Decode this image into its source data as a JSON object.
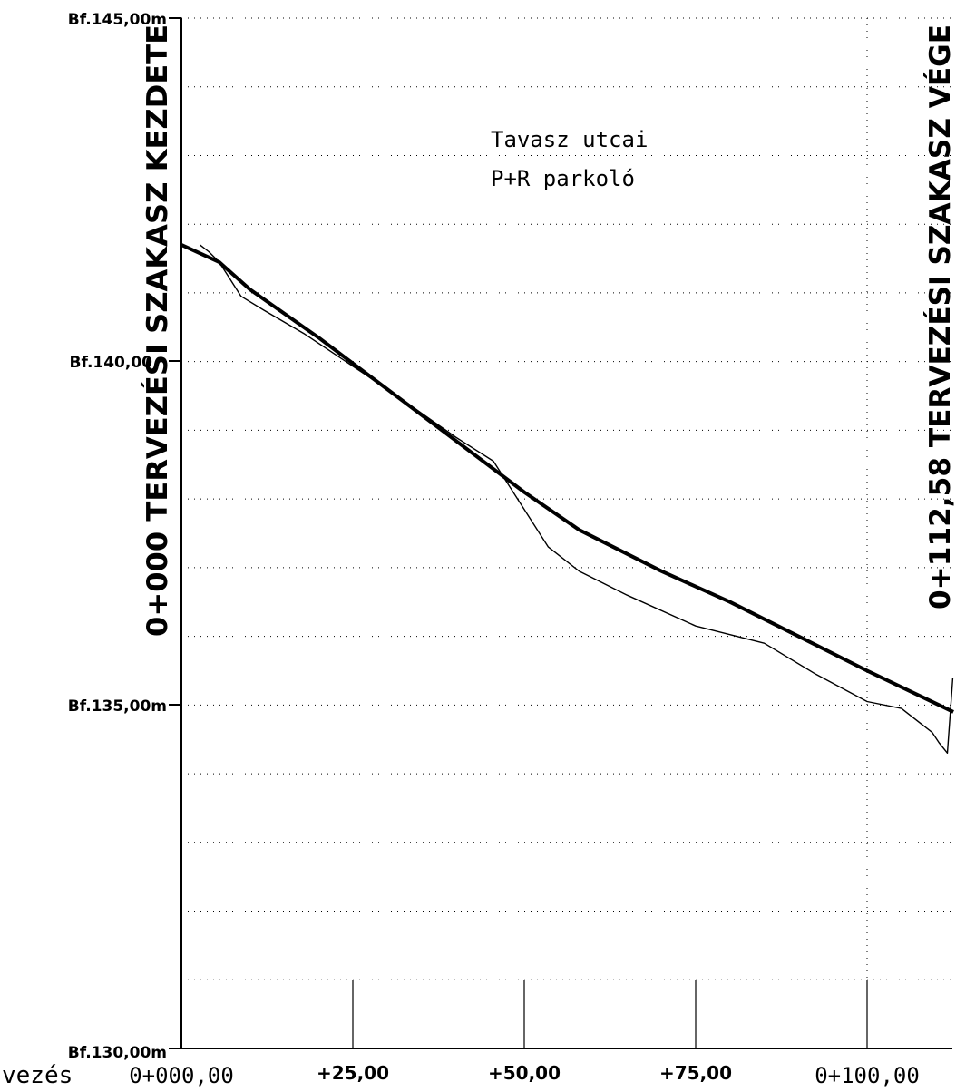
{
  "chart_data": {
    "type": "line",
    "elevation_labels": [
      "Bf.145,00m",
      "Bf.140,00",
      "Bf.135,00m",
      "Bf.130,00m"
    ],
    "station_labels": [
      "0+000,00",
      "+25,00",
      "+50,00",
      "+75,00",
      "0+100,00"
    ],
    "partial_label": "vezés",
    "xlim": [
      0,
      112.58
    ],
    "ylim": [
      130,
      145
    ],
    "x_major_ticks": [
      0,
      25,
      50,
      75,
      100
    ],
    "y_grid_step": 1,
    "grid": "dotted",
    "series": [
      {
        "style": "thick",
        "points": [
          [
            0,
            141.7
          ],
          [
            5.5,
            141.45
          ],
          [
            10,
            141.05
          ],
          [
            20,
            140.35
          ],
          [
            30,
            139.6
          ],
          [
            40,
            138.85
          ],
          [
            50,
            138.1
          ],
          [
            58,
            137.55
          ],
          [
            70,
            136.95
          ],
          [
            80,
            136.5
          ],
          [
            90,
            136.0
          ],
          [
            100,
            135.5
          ],
          [
            112.58,
            134.9
          ]
        ]
      },
      {
        "style": "thin",
        "points": [
          [
            2.7,
            141.7
          ],
          [
            4,
            141.6
          ],
          [
            5.5,
            141.45
          ],
          [
            8.7,
            140.95
          ],
          [
            12,
            140.75
          ],
          [
            18,
            140.4
          ],
          [
            30,
            139.6
          ],
          [
            40,
            138.9
          ],
          [
            45.5,
            138.55
          ],
          [
            53.5,
            137.3
          ],
          [
            58,
            136.95
          ],
          [
            65,
            136.6
          ],
          [
            75,
            136.15
          ],
          [
            85,
            135.9
          ],
          [
            92.5,
            135.45
          ],
          [
            100,
            135.05
          ],
          [
            105,
            134.95
          ],
          [
            109.5,
            134.6
          ],
          [
            110.5,
            134.45
          ],
          [
            111.7,
            134.3
          ],
          [
            112.5,
            135.4
          ]
        ]
      }
    ]
  },
  "annotations": {
    "start_title": "0+000 TERVEZÉSI SZAKASZ KEZDETE",
    "end_title": "0+112,58 TERVEZÉSI SZAKASZ VÉGE",
    "note_line1": "Tavasz utcai",
    "note_line2": "P+R parkoló"
  }
}
